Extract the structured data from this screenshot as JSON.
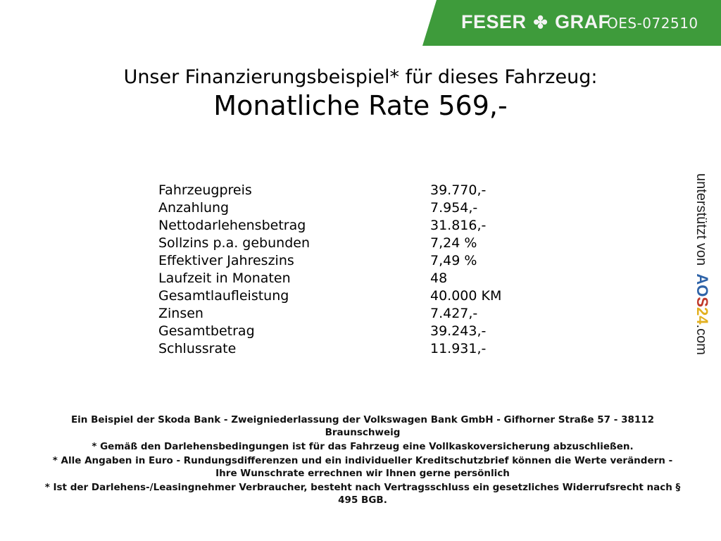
{
  "header": {
    "brand": "FESER",
    "brand2": "GRAF",
    "vehicle_code": "OES-072510",
    "brand_color": "#3e9b3b"
  },
  "title": "Unser Finanzierungsbeispiel* für dieses Fahrzeug:",
  "rate": "Monatliche Rate 569,-",
  "rows": [
    {
      "label": "Fahrzeugpreis",
      "value": "39.770,-"
    },
    {
      "label": "Anzahlung",
      "value": "7.954,-"
    },
    {
      "label": "Nettodarlehensbetrag",
      "value": "31.816,-"
    },
    {
      "label": "Sollzins p.a. gebunden",
      "value": "7,24 %"
    },
    {
      "label": "Effektiver Jahreszins",
      "value": "7,49 %"
    },
    {
      "label": "Laufzeit in Monaten",
      "value": "48"
    },
    {
      "label": "Gesamtlaufleistung",
      "value": "40.000 KM"
    },
    {
      "label": "Zinsen",
      "value": "7.427,-"
    },
    {
      "label": "Gesamtbetrag",
      "value": "39.243,-"
    },
    {
      "label": "Schlussrate",
      "value": "11.931,-"
    }
  ],
  "footer": [
    "Ein Beispiel der Skoda Bank - Zweigniederlassung der Volkswagen Bank GmbH - Gifhorner Straße 57 - 38112 Braunschweig",
    "* Gemäß den Darlehensbedingungen ist für das Fahrzeug eine Vollkaskoversicherung abzuschließen.",
    "* Alle Angaben in Euro - Rundungsdifferenzen und ein individueller Kreditschutzbrief können die Werte verändern - Ihre Wunschrate errechnen wir Ihnen gerne persönlich",
    "* Ist der Darlehens-/Leasingnehmer Verbraucher, besteht nach Vertragsschluss ein gesetzliches Widerrufsrecht nach § 495 BGB."
  ],
  "side": {
    "prefix": "unterstützt von",
    "logo_letters": [
      "A",
      "O",
      "S",
      "2",
      "4"
    ],
    "logo_colors": [
      "#2e63a8",
      "#2e63a8",
      "#c0392b",
      "#e2b020",
      "#e2b020"
    ],
    "suffix": ".com"
  }
}
